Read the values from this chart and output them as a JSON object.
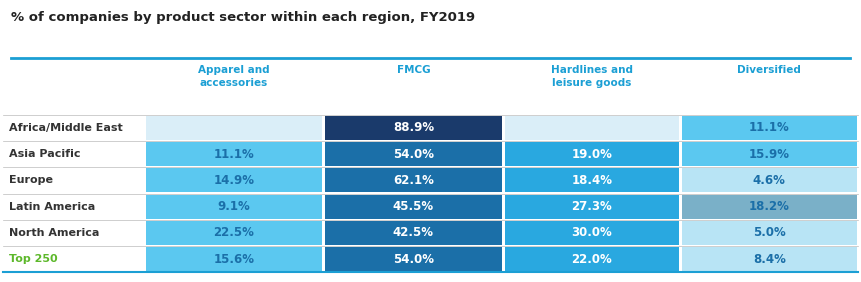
{
  "title": "% of companies by product sector within each region, FY2019",
  "columns": [
    "Apparel and\naccessories",
    "FMCG",
    "Hardlines and\nleisure goods",
    "Diversified"
  ],
  "rows": [
    {
      "label": "Africa/Middle East",
      "values": [
        "",
        "88.9%",
        "",
        "11.1%"
      ],
      "bg_colors": [
        "#daeef8",
        "#1a3a6b",
        "#daeef8",
        "#5bc8f0"
      ]
    },
    {
      "label": "Asia Pacific",
      "values": [
        "11.1%",
        "54.0%",
        "19.0%",
        "15.9%"
      ],
      "bg_colors": [
        "#5bc8f0",
        "#1b6fa8",
        "#29a8e0",
        "#5bc8f0"
      ]
    },
    {
      "label": "Europe",
      "values": [
        "14.9%",
        "62.1%",
        "18.4%",
        "4.6%"
      ],
      "bg_colors": [
        "#5bc8f0",
        "#1b6fa8",
        "#29a8e0",
        "#b8e4f5"
      ]
    },
    {
      "label": "Latin America",
      "values": [
        "9.1%",
        "45.5%",
        "27.3%",
        "18.2%"
      ],
      "bg_colors": [
        "#5bc8f0",
        "#1b6fa8",
        "#29a8e0",
        "#7ab0c8"
      ]
    },
    {
      "label": "North America",
      "values": [
        "22.5%",
        "42.5%",
        "30.0%",
        "5.0%"
      ],
      "bg_colors": [
        "#5bc8f0",
        "#1b6fa8",
        "#29a8e0",
        "#b8e4f5"
      ]
    },
    {
      "label": "Top 250",
      "values": [
        "15.6%",
        "54.0%",
        "22.0%",
        "8.4%"
      ],
      "bg_colors": [
        "#5bc8f0",
        "#1b6fa8",
        "#29a8e0",
        "#b8e4f5"
      ],
      "label_color": "#5db82b"
    }
  ],
  "header_color": "#1b9fd4",
  "row_label_color": "#333333",
  "top_line_color": "#1b9fd4",
  "divider_color": "#bbbbbb",
  "background_color": "#ffffff",
  "col_starts": [
    0.0,
    0.165,
    0.375,
    0.585,
    0.792
  ],
  "col_ends": [
    0.165,
    0.375,
    0.585,
    0.792,
    1.0
  ]
}
